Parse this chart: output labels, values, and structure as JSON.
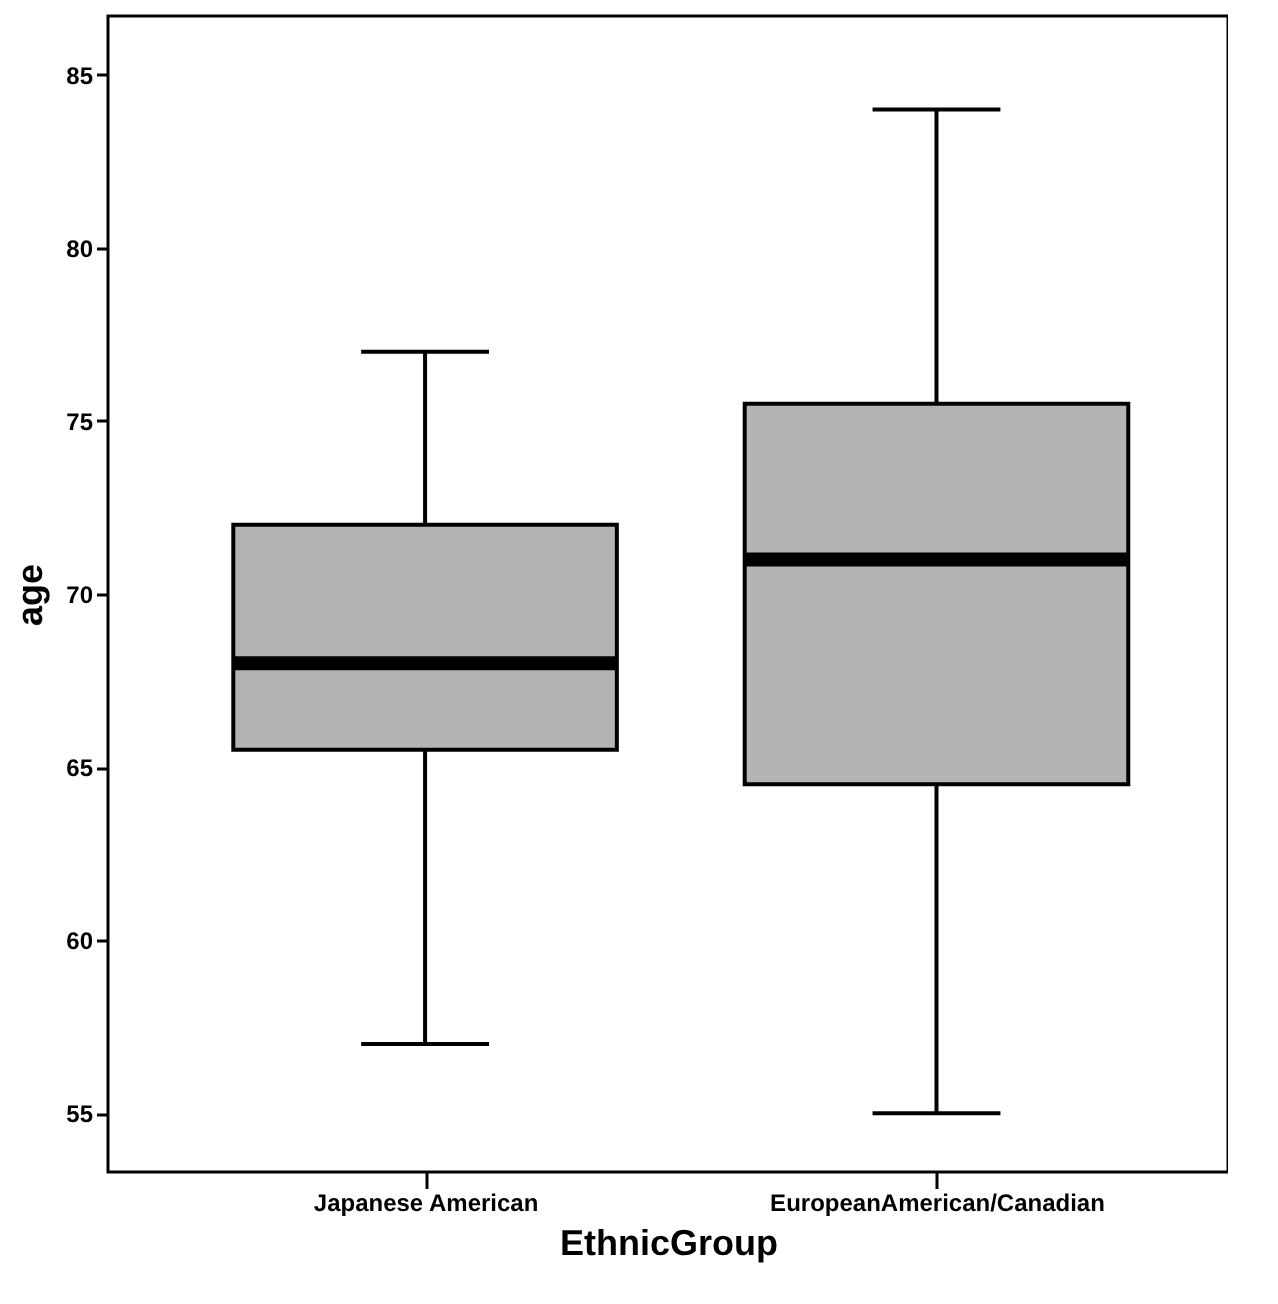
{
  "chart_data": {
    "type": "box",
    "xlabel": "EthnicGroup",
    "ylabel": "age",
    "categories": [
      "Japanese American",
      "EuropeanAmerican/Canadian"
    ],
    "series": [
      {
        "color": "#b4b4b4",
        "boxes": [
          {
            "low": 57,
            "q1": 65.5,
            "median": 68,
            "q3": 72,
            "high": 77
          },
          {
            "low": 55,
            "q1": 64.5,
            "median": 71,
            "q3": 75.5,
            "high": 84
          }
        ]
      }
    ],
    "ylim": [
      53.3,
      86.7
    ],
    "yticks": [
      55,
      60,
      65,
      70,
      75,
      80,
      85
    ],
    "grid": false
  }
}
